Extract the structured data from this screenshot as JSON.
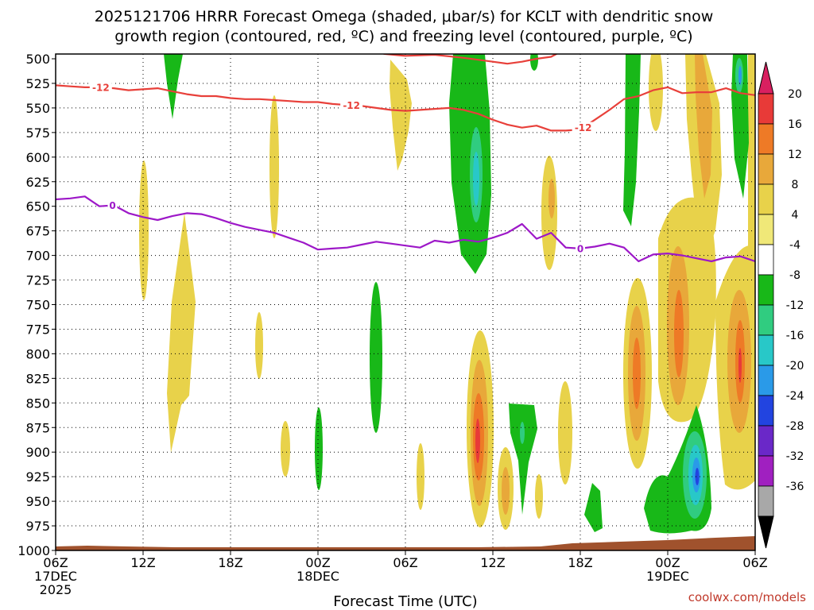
{
  "chart_data": {
    "type": "heatmap",
    "title_line1": "2025121706 HRRR Forecast Omega (shaded, μbar/s) for KCLT with dendritic snow",
    "title_line2": "growth region (contoured, red, ºC) and freezing level (contoured, purple, ºC)",
    "xlabel": "Forecast Time (UTC)",
    "credit": "coolwx.com/models",
    "x_hours_range": [
      0,
      48
    ],
    "y_pressure_range": [
      500,
      1000
    ],
    "y_ticks": [
      500,
      525,
      550,
      575,
      600,
      625,
      650,
      675,
      700,
      725,
      750,
      775,
      800,
      825,
      850,
      875,
      900,
      925,
      950,
      975,
      1000
    ],
    "x_ticks": [
      {
        "hour": 0,
        "label": "06Z",
        "sub1": "17DEC",
        "sub2": "2025"
      },
      {
        "hour": 6,
        "label": "12Z",
        "sub1": "",
        "sub2": ""
      },
      {
        "hour": 12,
        "label": "18Z",
        "sub1": "",
        "sub2": ""
      },
      {
        "hour": 18,
        "label": "00Z",
        "sub1": "18DEC",
        "sub2": ""
      },
      {
        "hour": 24,
        "label": "06Z",
        "sub1": "",
        "sub2": ""
      },
      {
        "hour": 30,
        "label": "12Z",
        "sub1": "",
        "sub2": ""
      },
      {
        "hour": 36,
        "label": "18Z",
        "sub1": "",
        "sub2": ""
      },
      {
        "hour": 42,
        "label": "00Z",
        "sub1": "19DEC",
        "sub2": ""
      },
      {
        "hour": 48,
        "label": "06Z",
        "sub1": "",
        "sub2": ""
      }
    ],
    "colorbar": {
      "labels": [
        "20",
        "16",
        "12",
        "8",
        "4",
        "-4",
        "-8",
        "-12",
        "-16",
        "-20",
        "-24",
        "-28",
        "-32",
        "-36"
      ],
      "colors": [
        "#d92060",
        "#e83a38",
        "#ee7a26",
        "#e8a83a",
        "#e8d24a",
        "#f0e878",
        "#ffffff",
        "#18b818",
        "#30cc80",
        "#28c8c8",
        "#2a9ae8",
        "#2244e0",
        "#6a28c8",
        "#a020c0",
        "#a8a8a8",
        "#000000"
      ]
    },
    "contours": [
      {
        "name": "dendritic-12C",
        "color": "#e8403a",
        "label": "-12",
        "points": [
          [
            0,
            527
          ],
          [
            1,
            528
          ],
          [
            2,
            529
          ],
          [
            3,
            529
          ],
          [
            4,
            530
          ],
          [
            5,
            532
          ],
          [
            6,
            531
          ],
          [
            7,
            530
          ],
          [
            8,
            533
          ],
          [
            9,
            536
          ],
          [
            10,
            538
          ],
          [
            11,
            538
          ],
          [
            12,
            540
          ],
          [
            13,
            541
          ],
          [
            14,
            541
          ],
          [
            15,
            542
          ],
          [
            16,
            543
          ],
          [
            17,
            544
          ],
          [
            18,
            544
          ],
          [
            19,
            546
          ],
          [
            20,
            547
          ],
          [
            21,
            548
          ],
          [
            22,
            550
          ],
          [
            23,
            552
          ],
          [
            24,
            553
          ],
          [
            25,
            552
          ],
          [
            26,
            551
          ],
          [
            27,
            550
          ],
          [
            28,
            552
          ],
          [
            29,
            556
          ],
          [
            30,
            562
          ],
          [
            31,
            567
          ],
          [
            32,
            570
          ],
          [
            33,
            568
          ],
          [
            34,
            573
          ],
          [
            35,
            573
          ],
          [
            36,
            572
          ],
          [
            37,
            562
          ],
          [
            38,
            552
          ],
          [
            39,
            541
          ],
          [
            40,
            538
          ],
          [
            41,
            532
          ],
          [
            42,
            529
          ],
          [
            43,
            535
          ],
          [
            44,
            534
          ],
          [
            45,
            534
          ],
          [
            46,
            530
          ],
          [
            47,
            535
          ],
          [
            48,
            537
          ]
        ],
        "label_hours": [
          3.1,
          20.3,
          36.2
        ]
      },
      {
        "name": "dendritic-12C-top",
        "color": "#e8403a",
        "label": "",
        "points": [
          [
            22.5,
            495
          ],
          [
            24,
            497
          ],
          [
            26,
            496
          ],
          [
            28,
            499
          ],
          [
            30,
            503
          ],
          [
            31,
            505
          ],
          [
            32,
            503
          ],
          [
            33,
            500
          ],
          [
            34,
            498
          ],
          [
            34.5,
            494
          ]
        ],
        "label_hours": []
      },
      {
        "name": "freezing-0C",
        "color": "#9d18c8",
        "label": "0",
        "points": [
          [
            0,
            643
          ],
          [
            1,
            642
          ],
          [
            2,
            640
          ],
          [
            3,
            650
          ],
          [
            4,
            649
          ],
          [
            5,
            657
          ],
          [
            6,
            661
          ],
          [
            7,
            664
          ],
          [
            8,
            660
          ],
          [
            9,
            657
          ],
          [
            10,
            658
          ],
          [
            11,
            662
          ],
          [
            12,
            667
          ],
          [
            13,
            671
          ],
          [
            14,
            674
          ],
          [
            15,
            677
          ],
          [
            16,
            682
          ],
          [
            17,
            687
          ],
          [
            18,
            694
          ],
          [
            19,
            693
          ],
          [
            20,
            692
          ],
          [
            21,
            689
          ],
          [
            22,
            686
          ],
          [
            23,
            688
          ],
          [
            24,
            690
          ],
          [
            25,
            692
          ],
          [
            26,
            685
          ],
          [
            27,
            687
          ],
          [
            28,
            684
          ],
          [
            29,
            686
          ],
          [
            30,
            682
          ],
          [
            31,
            677
          ],
          [
            32,
            668
          ],
          [
            33,
            683
          ],
          [
            34,
            677
          ],
          [
            35,
            692
          ],
          [
            36,
            693
          ],
          [
            37,
            691
          ],
          [
            38,
            688
          ],
          [
            39,
            692
          ],
          [
            40,
            706
          ],
          [
            41,
            699
          ],
          [
            42,
            698
          ],
          [
            43,
            700
          ],
          [
            44,
            703
          ],
          [
            45,
            706
          ],
          [
            46,
            702
          ],
          [
            47,
            701
          ],
          [
            48,
            706
          ]
        ],
        "label_hours": [
          3.9,
          36.0
        ]
      }
    ]
  }
}
